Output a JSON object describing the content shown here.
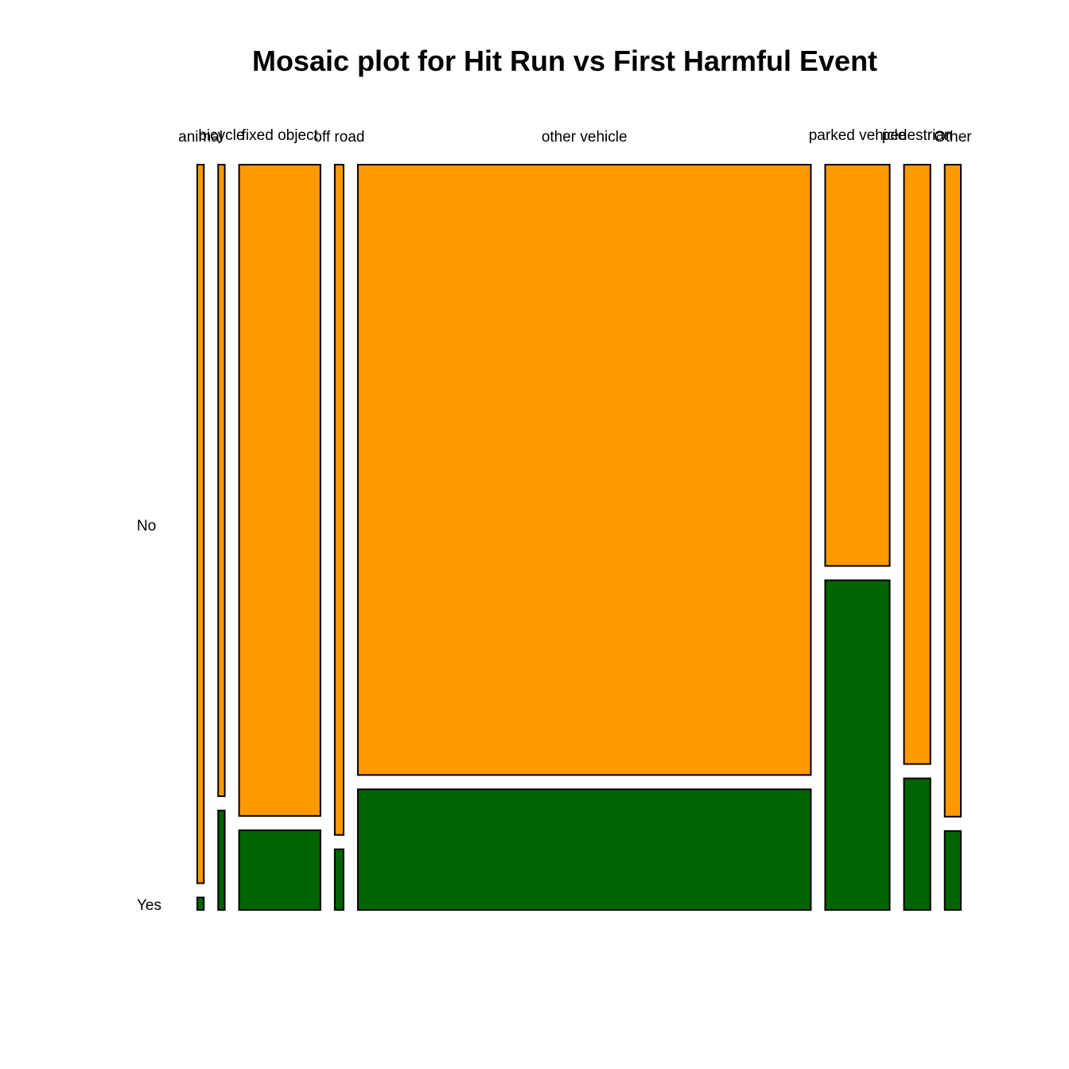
{
  "chart_data": {
    "type": "mosaic",
    "title": "Mosaic plot for Hit Run vs First Harmful Event",
    "x_variable_categories": [
      "animal",
      "bicycle",
      "fixed object",
      "off road",
      "other vehicle",
      "parked vehicle",
      "pedestrian",
      "Other"
    ],
    "y_variable_categories": [
      "No",
      "Yes"
    ],
    "column_widths": [
      0.009,
      0.009,
      0.111,
      0.012,
      0.618,
      0.088,
      0.036,
      0.022
    ],
    "yes_proportions": [
      0.017,
      0.136,
      0.109,
      0.083,
      0.165,
      0.451,
      0.18,
      0.108
    ],
    "colors": {
      "No": "#FF9900",
      "Yes": "#006400"
    }
  }
}
